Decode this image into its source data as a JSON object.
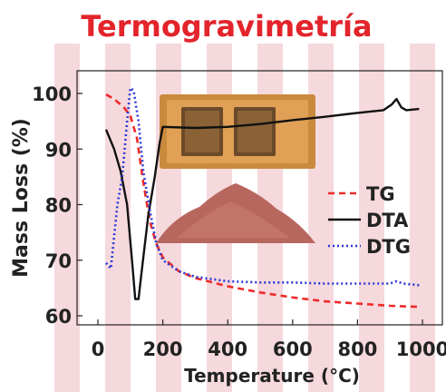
{
  "title": "Termogravimetría",
  "colors": {
    "title": "#e3242b",
    "stripe": "#f6d9dd",
    "tg": "#ee2a2a",
    "dta": "#111111",
    "dtg": "#2a38d6",
    "brick": "#c98a3d",
    "powder": "#b8675f"
  },
  "chart_data": {
    "type": "line",
    "xlabel": "Temperature (°C)",
    "ylabel": "Mass Loss (%)",
    "xlim": [
      0,
      1000
    ],
    "ylim": [
      59,
      103
    ],
    "x_ticks": [
      0,
      200,
      400,
      600,
      800,
      1000
    ],
    "y_ticks": [
      60,
      70,
      80,
      90,
      100
    ],
    "legend_position": "right",
    "grid": false,
    "series": [
      {
        "name": "TG",
        "style": "dashed",
        "color": "#ee2a2a",
        "points": [
          [
            25,
            99.8
          ],
          [
            50,
            99.0
          ],
          [
            80,
            97.5
          ],
          [
            100,
            96.0
          ],
          [
            120,
            92.0
          ],
          [
            140,
            84.0
          ],
          [
            160,
            77.0
          ],
          [
            180,
            73.0
          ],
          [
            200,
            70.5
          ],
          [
            250,
            68.0
          ],
          [
            300,
            66.8
          ],
          [
            400,
            65.3
          ],
          [
            500,
            64.2
          ],
          [
            600,
            63.3
          ],
          [
            700,
            62.6
          ],
          [
            800,
            62.2
          ],
          [
            900,
            61.8
          ],
          [
            990,
            61.6
          ]
        ]
      },
      {
        "name": "DTA",
        "style": "solid",
        "color": "#111111",
        "points": [
          [
            25,
            93.5
          ],
          [
            50,
            90.0
          ],
          [
            70,
            86.0
          ],
          [
            90,
            80.0
          ],
          [
            105,
            70.0
          ],
          [
            115,
            63.0
          ],
          [
            125,
            63.0
          ],
          [
            135,
            68.0
          ],
          [
            155,
            78.0
          ],
          [
            175,
            85.0
          ],
          [
            190,
            91.0
          ],
          [
            200,
            94.0
          ],
          [
            300,
            93.8
          ],
          [
            400,
            94.0
          ],
          [
            500,
            94.5
          ],
          [
            600,
            95.2
          ],
          [
            700,
            95.8
          ],
          [
            800,
            96.5
          ],
          [
            880,
            97.0
          ],
          [
            905,
            98.0
          ],
          [
            920,
            99.0
          ],
          [
            935,
            97.5
          ],
          [
            950,
            97.0
          ],
          [
            990,
            97.2
          ]
        ]
      },
      {
        "name": "DTG",
        "style": "dotted",
        "color": "#2a38d6",
        "points": [
          [
            25,
            69.5
          ],
          [
            40,
            68.5
          ],
          [
            60,
            80.0
          ],
          [
            75,
            85.0
          ],
          [
            90,
            95.0
          ],
          [
            100,
            101.0
          ],
          [
            110,
            100.5
          ],
          [
            125,
            95.0
          ],
          [
            140,
            86.0
          ],
          [
            160,
            79.0
          ],
          [
            180,
            73.0
          ],
          [
            200,
            70.0
          ],
          [
            250,
            68.0
          ],
          [
            300,
            67.0
          ],
          [
            400,
            66.2
          ],
          [
            500,
            66.0
          ],
          [
            600,
            66.0
          ],
          [
            700,
            65.8
          ],
          [
            800,
            65.8
          ],
          [
            900,
            65.8
          ],
          [
            920,
            66.2
          ],
          [
            940,
            65.8
          ],
          [
            990,
            65.5
          ]
        ]
      }
    ]
  }
}
